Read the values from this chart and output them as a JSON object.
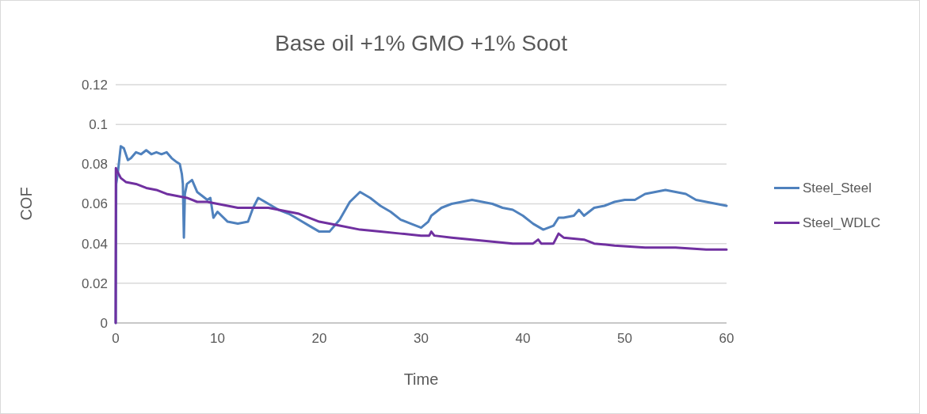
{
  "chart_data": {
    "type": "line",
    "title": "Base oil +1% GMO +1% Soot",
    "xlabel": "Time",
    "ylabel": "COF",
    "xlim": [
      0,
      60
    ],
    "xticks": [
      0,
      10,
      20,
      30,
      40,
      50,
      60
    ],
    "ylim": [
      0,
      0.12
    ],
    "yticks": [
      0,
      0.02,
      0.04,
      0.06,
      0.08,
      0.1,
      0.12
    ],
    "grid": "y",
    "legend": "right",
    "marker": "none",
    "line_style": "solid",
    "series": [
      {
        "name": "Steel_Steel",
        "color": "#4f81bd",
        "x": [
          0,
          0.05,
          0.2,
          0.5,
          0.8,
          1.2,
          1.5,
          2,
          2.5,
          3,
          3.5,
          4,
          4.5,
          5,
          5.5,
          6,
          6.3,
          6.5,
          6.6,
          6.7,
          6.8,
          7,
          7.5,
          8,
          8.5,
          9,
          9.3,
          9.6,
          10,
          11,
          12,
          13,
          13.5,
          14,
          15,
          16,
          17,
          18,
          19,
          20,
          21,
          22,
          23,
          24,
          25,
          26,
          27,
          28,
          29,
          30,
          30.7,
          31,
          32,
          33,
          34,
          35,
          36,
          37,
          38,
          39,
          40,
          41,
          42,
          43,
          43.5,
          44,
          45,
          45.5,
          46,
          47,
          48,
          49,
          50,
          51,
          52,
          53,
          54,
          55,
          56,
          57,
          58,
          59,
          60
        ],
        "values": [
          0,
          0.07,
          0.075,
          0.089,
          0.088,
          0.082,
          0.083,
          0.086,
          0.085,
          0.087,
          0.085,
          0.086,
          0.085,
          0.086,
          0.083,
          0.081,
          0.08,
          0.075,
          0.07,
          0.043,
          0.065,
          0.07,
          0.072,
          0.066,
          0.064,
          0.062,
          0.063,
          0.053,
          0.056,
          0.051,
          0.05,
          0.051,
          0.058,
          0.063,
          0.06,
          0.057,
          0.055,
          0.052,
          0.049,
          0.046,
          0.046,
          0.052,
          0.061,
          0.066,
          0.063,
          0.059,
          0.056,
          0.052,
          0.05,
          0.048,
          0.051,
          0.054,
          0.058,
          0.06,
          0.061,
          0.062,
          0.061,
          0.06,
          0.058,
          0.057,
          0.054,
          0.05,
          0.047,
          0.049,
          0.053,
          0.053,
          0.054,
          0.057,
          0.054,
          0.058,
          0.059,
          0.061,
          0.062,
          0.062,
          0.065,
          0.066,
          0.067,
          0.066,
          0.065,
          0.062,
          0.061,
          0.06,
          0.059
        ]
      },
      {
        "name": "Steel_WDLC",
        "color": "#7030a0",
        "x": [
          0,
          0.02,
          0.1,
          0.5,
          1,
          2,
          3,
          4,
          5,
          6,
          7,
          8,
          9,
          10,
          11,
          12,
          13,
          14,
          15,
          16,
          17,
          18,
          19,
          20,
          22,
          24,
          26,
          28,
          30,
          30.8,
          31,
          31.3,
          33,
          35,
          37,
          39,
          40,
          41,
          41.5,
          41.8,
          43,
          43.5,
          44,
          46,
          47,
          49,
          52,
          55,
          58,
          60
        ],
        "values": [
          0,
          0.078,
          0.077,
          0.073,
          0.071,
          0.07,
          0.068,
          0.067,
          0.065,
          0.064,
          0.063,
          0.061,
          0.061,
          0.06,
          0.059,
          0.058,
          0.058,
          0.058,
          0.058,
          0.057,
          0.056,
          0.055,
          0.053,
          0.051,
          0.049,
          0.047,
          0.046,
          0.045,
          0.044,
          0.044,
          0.046,
          0.044,
          0.043,
          0.042,
          0.041,
          0.04,
          0.04,
          0.04,
          0.042,
          0.04,
          0.04,
          0.045,
          0.043,
          0.042,
          0.04,
          0.039,
          0.038,
          0.038,
          0.037,
          0.037
        ]
      }
    ]
  }
}
